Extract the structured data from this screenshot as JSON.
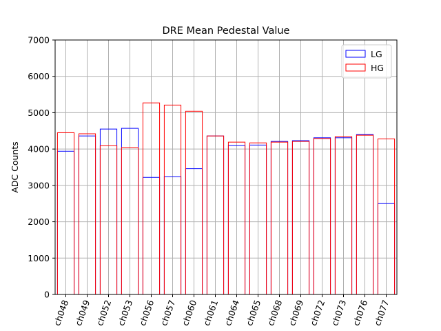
{
  "chart_data": {
    "type": "bar",
    "title": "DRE Mean Pedestal Value",
    "xlabel": "",
    "ylabel": "ADC Counts",
    "ylim": [
      0,
      7000
    ],
    "yticks": [
      0,
      1000,
      2000,
      3000,
      4000,
      5000,
      6000,
      7000
    ],
    "grid": true,
    "legend_position": "top-right",
    "bar_fill": "none",
    "categories": [
      "ch048",
      "ch049",
      "ch052",
      "ch053",
      "ch056",
      "ch057",
      "ch060",
      "ch061",
      "ch064",
      "ch065",
      "ch068",
      "ch069",
      "ch072",
      "ch073",
      "ch076",
      "ch077"
    ],
    "series": [
      {
        "name": "LG",
        "color": "#0000ff",
        "values": [
          3940,
          4360,
          4550,
          4570,
          3220,
          3240,
          3460,
          4360,
          4100,
          4110,
          4210,
          4230,
          4310,
          4310,
          4400,
          2500
        ]
      },
      {
        "name": "HG",
        "color": "#ff0000",
        "values": [
          4450,
          4420,
          4090,
          4040,
          5270,
          5210,
          5040,
          4360,
          4190,
          4170,
          4190,
          4210,
          4290,
          4340,
          4380,
          4280
        ]
      }
    ]
  }
}
